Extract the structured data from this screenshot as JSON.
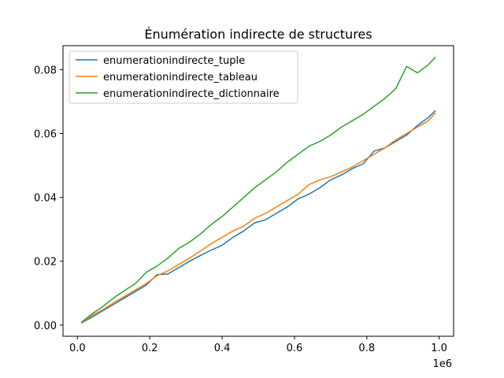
{
  "chart_data": {
    "type": "line",
    "title": "Énumération indirecte de structures",
    "xlabel": "",
    "ylabel": "",
    "x_offset_label": "1e6",
    "xlim": [
      -0.04,
      1.04
    ],
    "ylim": [
      -0.0035,
      0.0875
    ],
    "x_ticks": [
      {
        "value": 0.0,
        "label": "0.0"
      },
      {
        "value": 0.2,
        "label": "0.2"
      },
      {
        "value": 0.4,
        "label": "0.4"
      },
      {
        "value": 0.6,
        "label": "0.6"
      },
      {
        "value": 0.8,
        "label": "0.8"
      },
      {
        "value": 1.0,
        "label": "1.0"
      }
    ],
    "y_ticks": [
      {
        "value": 0.0,
        "label": "0.00"
      },
      {
        "value": 0.02,
        "label": "0.02"
      },
      {
        "value": 0.04,
        "label": "0.04"
      },
      {
        "value": 0.06,
        "label": "0.06"
      },
      {
        "value": 0.08,
        "label": "0.08"
      }
    ],
    "grid": false,
    "legend_position": "top-left",
    "x": [
      0.01,
      0.04,
      0.07,
      0.1,
      0.13,
      0.16,
      0.19,
      0.22,
      0.25,
      0.28,
      0.31,
      0.34,
      0.37,
      0.4,
      0.43,
      0.46,
      0.49,
      0.52,
      0.55,
      0.58,
      0.61,
      0.64,
      0.67,
      0.7,
      0.73,
      0.76,
      0.79,
      0.82,
      0.85,
      0.88,
      0.91,
      0.94,
      0.97,
      0.99
    ],
    "series": [
      {
        "name": "enumerationindirecte_tuple",
        "color": "#1f77b4",
        "values": [
          0.0006,
          0.0025,
          0.0045,
          0.0065,
          0.0085,
          0.0105,
          0.0125,
          0.0158,
          0.016,
          0.018,
          0.02,
          0.0218,
          0.0235,
          0.025,
          0.0275,
          0.0295,
          0.032,
          0.033,
          0.035,
          0.037,
          0.0395,
          0.041,
          0.043,
          0.0455,
          0.047,
          0.049,
          0.0505,
          0.0545,
          0.0555,
          0.0575,
          0.0595,
          0.0625,
          0.065,
          0.0672
        ]
      },
      {
        "name": "enumerationindirecte_tableau",
        "color": "#ff7f0e",
        "values": [
          0.0007,
          0.003,
          0.0048,
          0.007,
          0.009,
          0.011,
          0.013,
          0.0155,
          0.017,
          0.019,
          0.021,
          0.0232,
          0.0255,
          0.0275,
          0.0295,
          0.031,
          0.0335,
          0.035,
          0.037,
          0.039,
          0.041,
          0.044,
          0.0455,
          0.0465,
          0.048,
          0.0495,
          0.0515,
          0.0535,
          0.0555,
          0.058,
          0.06,
          0.062,
          0.064,
          0.0665
        ]
      },
      {
        "name": "enumerationindirecte_dictionnaire",
        "color": "#2ca02c",
        "values": [
          0.0008,
          0.0035,
          0.0058,
          0.0085,
          0.0108,
          0.013,
          0.0165,
          0.0185,
          0.021,
          0.024,
          0.026,
          0.0285,
          0.0315,
          0.034,
          0.037,
          0.04,
          0.043,
          0.0455,
          0.048,
          0.051,
          0.0535,
          0.056,
          0.0575,
          0.0595,
          0.062,
          0.064,
          0.066,
          0.0685,
          0.071,
          0.074,
          0.081,
          0.079,
          0.0815,
          0.084
        ]
      }
    ]
  }
}
